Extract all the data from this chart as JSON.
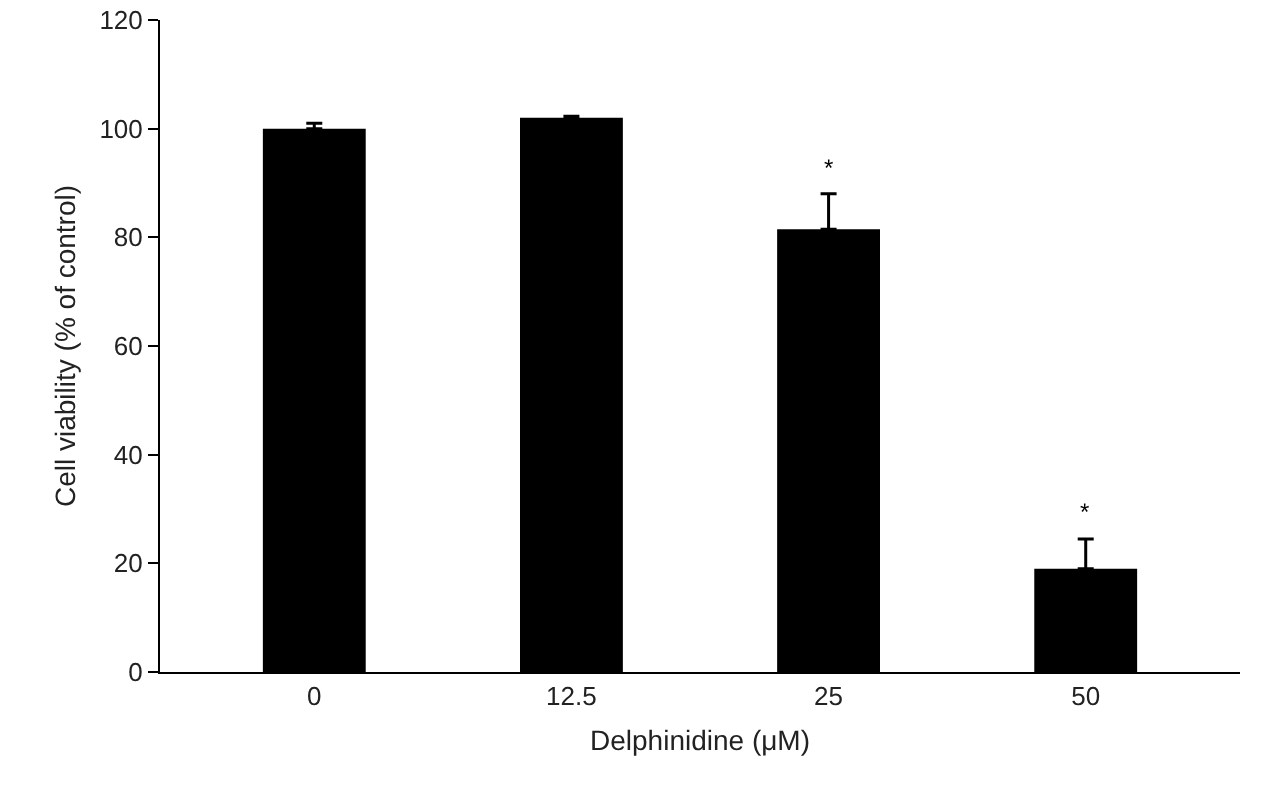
{
  "chart_data": {
    "type": "bar",
    "xlabel": "Delphinidine (μM)",
    "ylabel": "Cell viability (% of control)",
    "categories": [
      "0",
      "12.5",
      "25",
      "50"
    ],
    "values": [
      100,
      102,
      81.5,
      19
    ],
    "errors": [
      [
        100,
        101
      ],
      [
        102,
        102.3
      ],
      [
        81.5,
        88
      ],
      [
        19,
        24.5
      ]
    ],
    "color": "#000000",
    "ylim": [
      0,
      120
    ],
    "yticks": [
      0,
      20,
      40,
      60,
      80,
      100,
      120
    ],
    "grid": false,
    "annotations": [
      {
        "text": "*",
        "x": "25",
        "y": 88
      },
      {
        "text": "*",
        "x": "50",
        "y": 24.5
      }
    ]
  }
}
